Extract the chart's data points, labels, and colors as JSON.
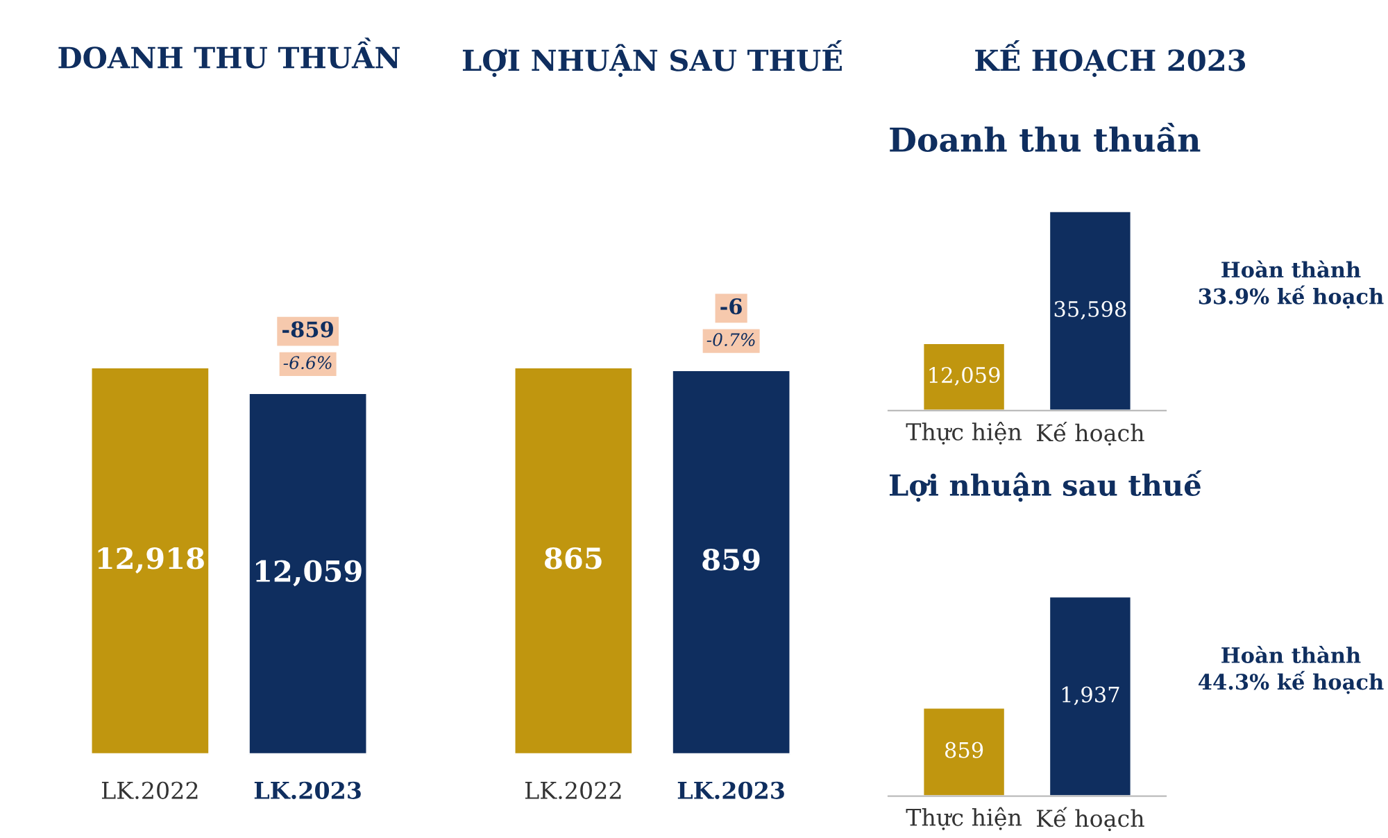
{
  "chart_data": [
    {
      "type": "bar",
      "title": "DOANH THU THUẦN",
      "categories": [
        "LK.2022",
        "LK.2023"
      ],
      "values": [
        12918,
        12059
      ],
      "colors": [
        "#c0960f",
        "#0f2e5f"
      ],
      "value_labels": [
        "12,918",
        "12,059"
      ],
      "annotations": [
        "-859",
        "-6.6%"
      ]
    },
    {
      "type": "bar",
      "title": "LỢI NHUẬN SAU THUẾ",
      "categories": [
        "LK.2022",
        "LK.2023"
      ],
      "values": [
        865,
        859
      ],
      "colors": [
        "#c0960f",
        "#0f2e5f"
      ],
      "value_labels": [
        "865",
        "859"
      ],
      "annotations": [
        "-6",
        "-0.7%"
      ]
    },
    {
      "type": "bar",
      "title": "KẾ HOẠCH 2023",
      "subtitle": "Doanh thu thuần",
      "categories": [
        "Thực hiện",
        "Kế hoạch"
      ],
      "values": [
        12059,
        35598
      ],
      "colors": [
        "#c0960f",
        "#0f2e5f"
      ],
      "value_labels": [
        "12,059",
        "35,598"
      ],
      "annotations": [
        "Hoàn thành 33.9% kế hoạch"
      ]
    },
    {
      "type": "bar",
      "title": "Lợi nhuận sau thuế",
      "categories": [
        "Thực hiện",
        "Kế hoạch"
      ],
      "values": [
        859,
        1937
      ],
      "colors": [
        "#c0960f",
        "#0f2e5f"
      ],
      "value_labels": [
        "859",
        "1,937"
      ],
      "annotations": [
        "Hoàn thành 44.3% kế hoạch"
      ]
    }
  ]
}
